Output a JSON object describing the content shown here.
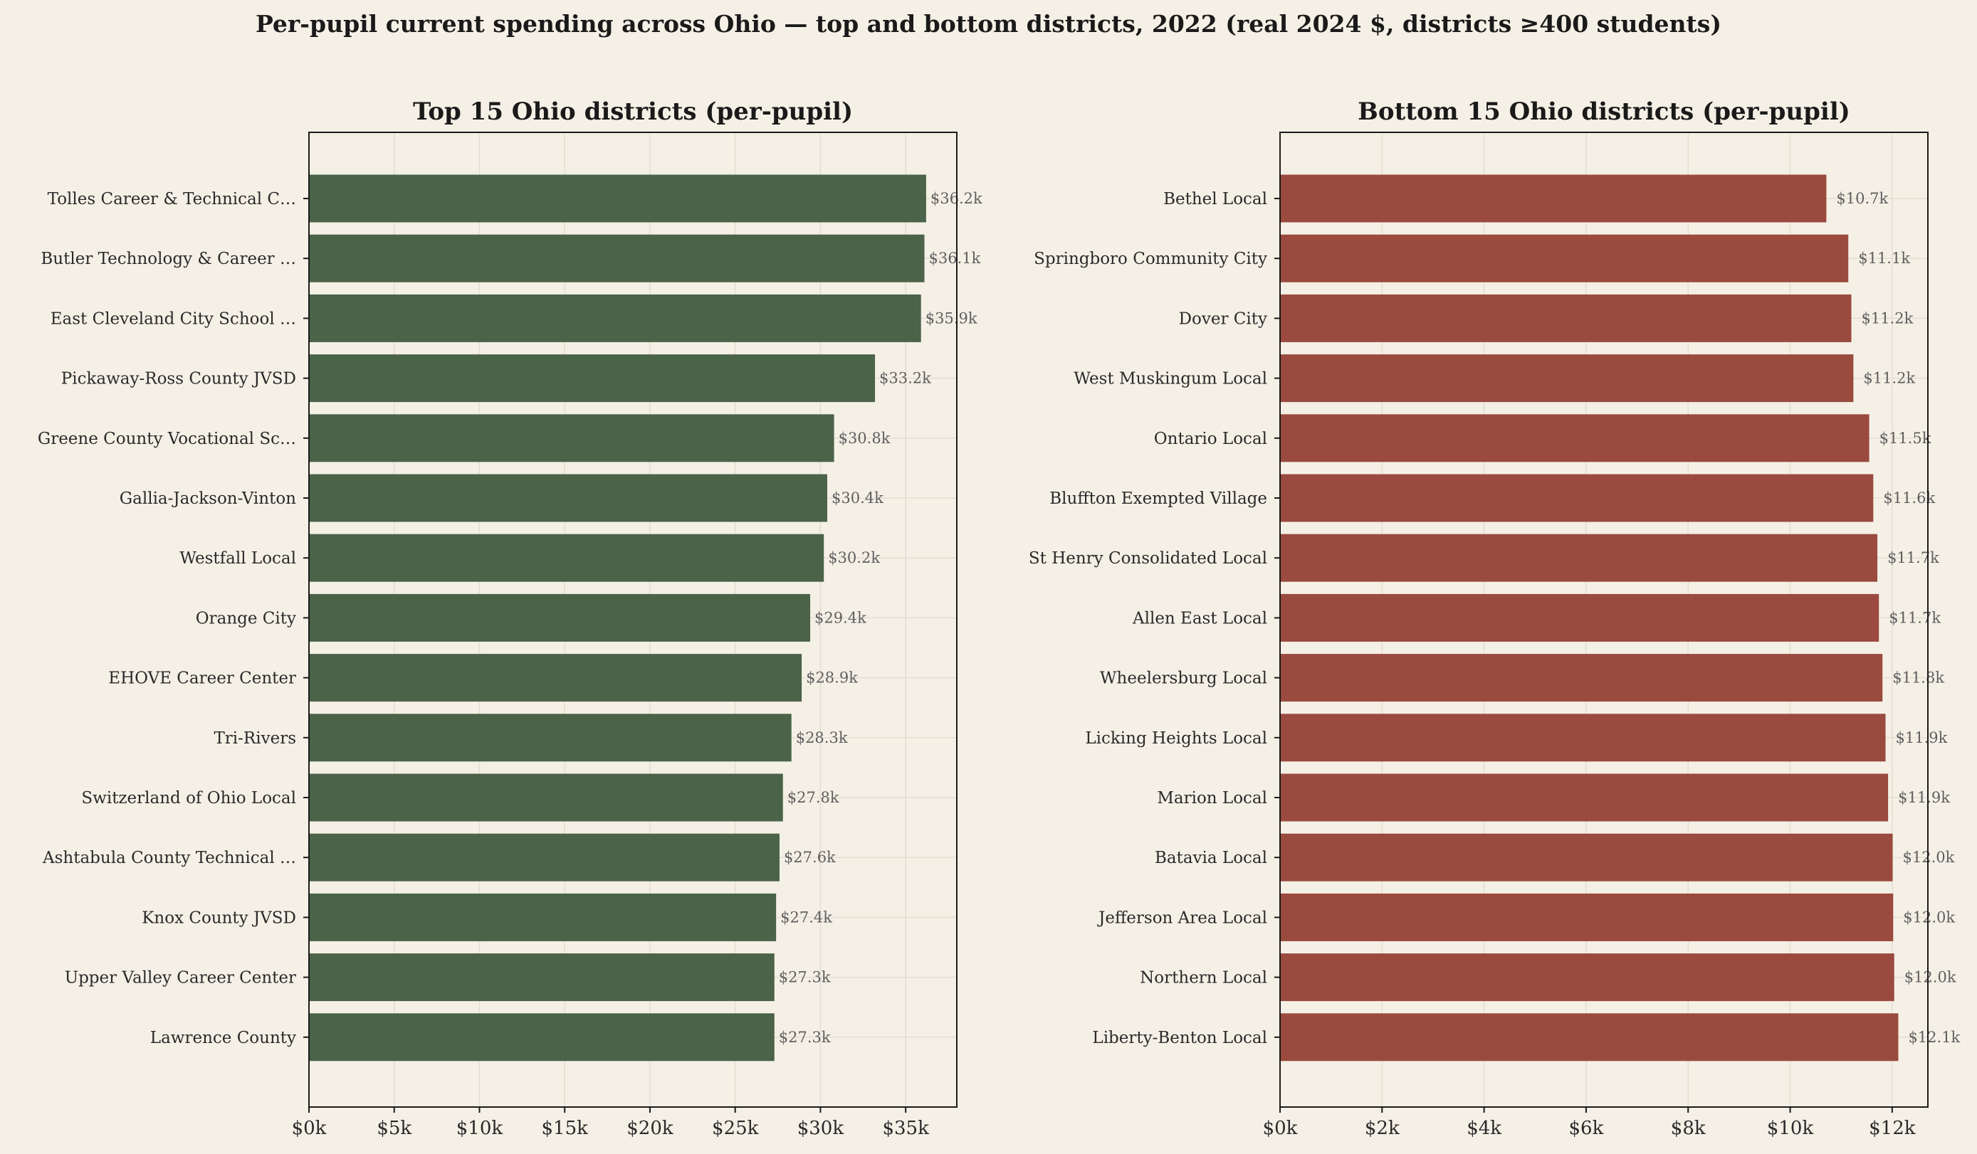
{
  "suptitle": "Per-pupil current spending across Ohio — top and bottom districts, 2022 (real 2024 $, districts ≥400 students)",
  "colors": {
    "background": "#f5f0e6",
    "top_bars": "#4a6349",
    "bottom_bars": "#9a4a3e",
    "grid": "#e3ddd2",
    "axis": "#1a1a1a",
    "value_label": "#5f5f5f"
  },
  "chart_data": [
    {
      "type": "bar",
      "orientation": "horizontal",
      "title": "Top 15 Ohio districts (per-pupil)",
      "xlabel": "",
      "ylabel": "",
      "xlim": [
        0,
        38000
      ],
      "xticks": [
        0,
        5000,
        10000,
        15000,
        20000,
        25000,
        30000,
        35000
      ],
      "xtick_labels": [
        "$0k",
        "$5k",
        "$10k",
        "$15k",
        "$20k",
        "$25k",
        "$30k",
        "$35k"
      ],
      "grid": true,
      "categories": [
        "Tolles Career & Technical C…",
        "Butler Technology & Career …",
        "East Cleveland City School …",
        "Pickaway-Ross County JVSD",
        "Greene County Vocational Sc…",
        "Gallia-Jackson-Vinton",
        "Westfall Local",
        "Orange City",
        "EHOVE Career Center",
        "Tri-Rivers",
        "Switzerland of Ohio Local",
        "Ashtabula County Technical …",
        "Knox County JVSD",
        "Upper Valley Career Center",
        "Lawrence County"
      ],
      "values": [
        36200,
        36100,
        35900,
        33200,
        30800,
        30400,
        30200,
        29400,
        28900,
        28300,
        27800,
        27600,
        27400,
        27300,
        27300
      ],
      "value_labels": [
        "$36.2k",
        "$36.1k",
        "$35.9k",
        "$33.2k",
        "$30.8k",
        "$30.4k",
        "$30.2k",
        "$29.4k",
        "$28.9k",
        "$28.3k",
        "$27.8k",
        "$27.6k",
        "$27.4k",
        "$27.3k",
        "$27.3k"
      ]
    },
    {
      "type": "bar",
      "orientation": "horizontal",
      "title": "Bottom 15 Ohio districts (per-pupil)",
      "xlabel": "",
      "ylabel": "",
      "xlim": [
        0,
        12700
      ],
      "xticks": [
        0,
        2000,
        4000,
        6000,
        8000,
        10000,
        12000
      ],
      "xtick_labels": [
        "$0k",
        "$2k",
        "$4k",
        "$6k",
        "$8k",
        "$10k",
        "$12k"
      ],
      "grid": true,
      "categories": [
        "Bethel Local",
        "Springboro Community City",
        "Dover City",
        "West Muskingum Local",
        "Ontario Local",
        "Bluffton Exempted Village",
        "St Henry Consolidated Local",
        "Allen East Local",
        "Wheelersburg Local",
        "Licking Heights Local",
        "Marion Local",
        "Batavia Local",
        "Jefferson Area Local",
        "Northern Local",
        "Liberty-Benton Local"
      ],
      "values": [
        10710,
        11140,
        11200,
        11240,
        11550,
        11630,
        11710,
        11740,
        11810,
        11870,
        11920,
        12010,
        12020,
        12040,
        12120
      ],
      "value_labels": [
        "$10.7k",
        "$11.1k",
        "$11.2k",
        "$11.2k",
        "$11.5k",
        "$11.6k",
        "$11.7k",
        "$11.7k",
        "$11.8k",
        "$11.9k",
        "$11.9k",
        "$12.0k",
        "$12.0k",
        "$12.0k",
        "$12.1k"
      ]
    }
  ]
}
